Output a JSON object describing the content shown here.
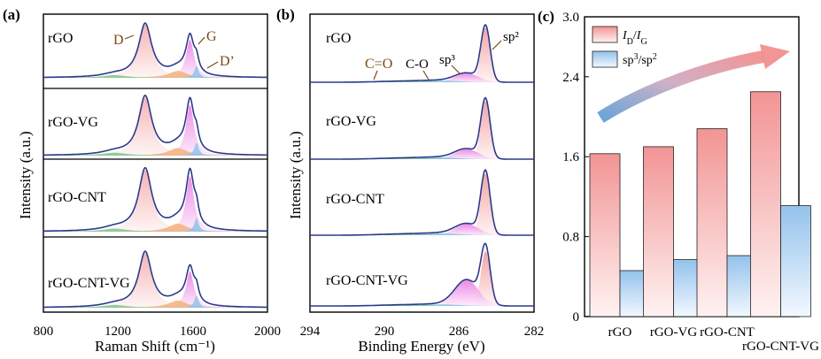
{
  "panels": {
    "a": {
      "label": "(a)",
      "xlabel": "Raman Shift (cm⁻¹)",
      "ylabel": "Intensity (a.u.)",
      "xticks": [
        "800",
        "1200",
        "1600",
        "2000"
      ],
      "samples": [
        "rGO",
        "rGO-VG",
        "rGO-CNT",
        "rGO-CNT-VG"
      ],
      "annotations": {
        "d": "D",
        "g": "G",
        "dprime": "D’"
      }
    },
    "b": {
      "label": "(b)",
      "xlabel": "Binding Energy (eV)",
      "ylabel": "Intensity (a.u.)",
      "xticks": [
        "294",
        "290",
        "286",
        "282"
      ],
      "samples": [
        "rGO",
        "rGO-VG",
        "rGO-CNT",
        "rGO-CNT-VG"
      ],
      "annotations": {
        "co_double": "C=O",
        "co_single": "C-O",
        "sp3": "sp³",
        "sp2": "sp²"
      }
    },
    "c": {
      "label": "(c)"
    }
  },
  "chart_data": [
    {
      "type": "line",
      "title": "(a)",
      "xlabel": "Raman Shift (cm-1)",
      "ylabel": "Intensity (a.u.)",
      "xlim": [
        800,
        2000
      ],
      "series": [
        {
          "name": "rGO",
          "D_peak": 1345,
          "G_peak": 1585,
          "D_rel": 1.0,
          "G_rel": 0.78
        },
        {
          "name": "rGO-VG",
          "D_peak": 1345,
          "G_peak": 1585,
          "D_rel": 1.0,
          "G_rel": 0.95
        },
        {
          "name": "rGO-CNT",
          "D_peak": 1345,
          "G_peak": 1585,
          "D_rel": 1.0,
          "G_rel": 0.98
        },
        {
          "name": "rGO-CNT-VG",
          "D_peak": 1345,
          "G_peak": 1585,
          "D_rel": 1.0,
          "G_rel": 0.72
        }
      ]
    },
    {
      "type": "line",
      "title": "(b)",
      "xlabel": "Binding Energy (eV)",
      "ylabel": "Intensity (a.u.)",
      "xlim": [
        294,
        282
      ],
      "series": [
        {
          "name": "rGO",
          "sp2_peak": 284.6,
          "sp3_peak": 285.6
        },
        {
          "name": "rGO-VG",
          "sp2_peak": 284.6,
          "sp3_peak": 285.6
        },
        {
          "name": "rGO-CNT",
          "sp2_peak": 284.6,
          "sp3_peak": 285.6
        },
        {
          "name": "rGO-CNT-VG",
          "sp2_peak": 284.6,
          "sp3_peak": 285.6
        }
      ]
    },
    {
      "type": "bar",
      "title": "(c)",
      "categories": [
        "rGO",
        "rGO-VG",
        "rGO-CNT",
        "rGO-CNT-VG"
      ],
      "series": [
        {
          "name": "ID/IG",
          "values": [
            1.63,
            1.7,
            1.88,
            2.25
          ],
          "color": "#f4a9a9"
        },
        {
          "name": "sp3/sp2",
          "values": [
            0.46,
            0.57,
            0.61,
            1.11
          ],
          "color": "#a9ccee"
        }
      ],
      "ylim": [
        0,
        3.0
      ],
      "yticks": [
        "0",
        "0.8",
        "1.6",
        "2.4",
        "3.0"
      ],
      "legend": [
        "ID/IG",
        "sp3/sp2"
      ],
      "legend_position": "top-left"
    }
  ]
}
